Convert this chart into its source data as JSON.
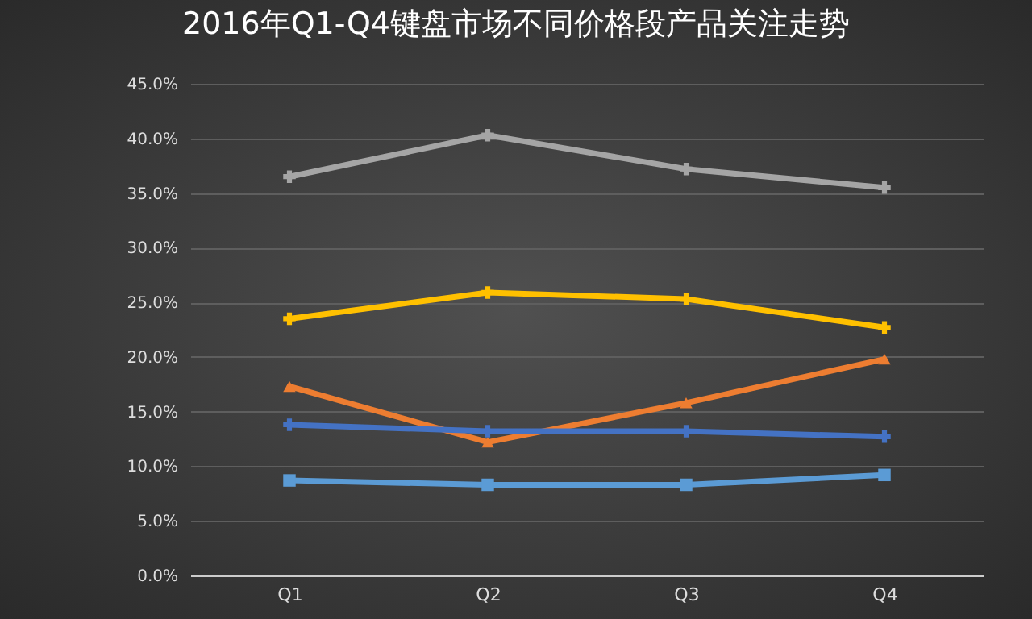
{
  "chart_data": {
    "type": "line",
    "title": "2016年Q1-Q4键盘市场不同价格段产品关注走势",
    "categories": [
      "Q1",
      "Q2",
      "Q3",
      "Q4"
    ],
    "series": [
      {
        "color": "#a5a5a5",
        "marker": "cross",
        "values": [
          36.5,
          40.3,
          37.2,
          35.5
        ]
      },
      {
        "color": "#ffc000",
        "marker": "cross",
        "values": [
          23.5,
          25.9,
          25.3,
          22.7
        ]
      },
      {
        "color": "#ed7d31",
        "marker": "triangle",
        "values": [
          17.3,
          12.2,
          15.8,
          19.8
        ]
      },
      {
        "color": "#4472c4",
        "marker": "cross",
        "values": [
          13.8,
          13.2,
          13.2,
          12.7
        ]
      },
      {
        "color": "#5b9bd5",
        "marker": "square",
        "values": [
          8.7,
          8.3,
          8.3,
          9.2
        ]
      }
    ],
    "ylim": [
      0,
      45
    ],
    "yticks": [
      {
        "value": 0,
        "label": "0.0%"
      },
      {
        "value": 5,
        "label": "5.0%"
      },
      {
        "value": 10,
        "label": "10.0%"
      },
      {
        "value": 15,
        "label": "15.0%"
      },
      {
        "value": 20,
        "label": "20.0%"
      },
      {
        "value": 25,
        "label": "25.0%"
      },
      {
        "value": 30,
        "label": "30.0%"
      },
      {
        "value": 35,
        "label": "35.0%"
      },
      {
        "value": 40,
        "label": "40.0%"
      },
      {
        "value": 45,
        "label": "45.0%"
      }
    ],
    "grid": "y",
    "legend": false
  }
}
